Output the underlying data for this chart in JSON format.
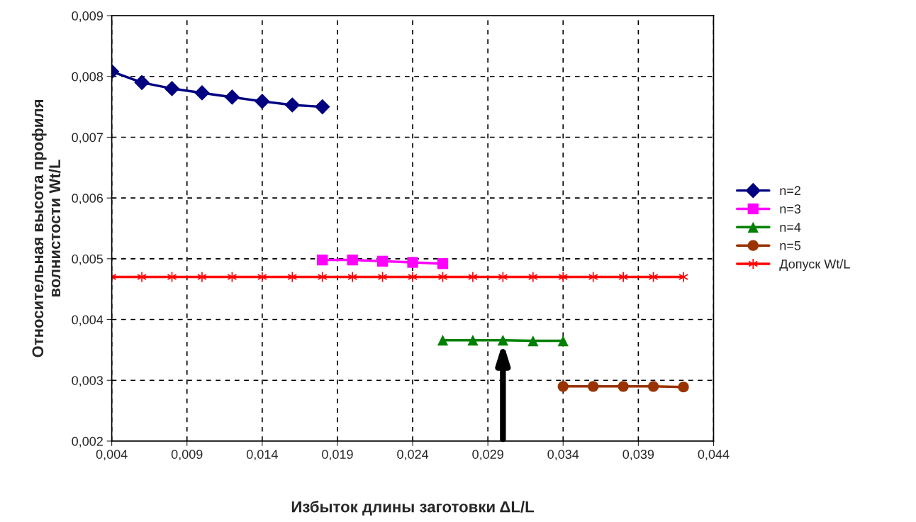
{
  "chart_data": {
    "type": "line",
    "xlabel": "Избыток длины заготовки ΔL/L",
    "ylabel": "Относительная высота профиля\nволнистости Wt/L",
    "xlim": [
      0.004,
      0.044
    ],
    "ylim": [
      0.002,
      0.009
    ],
    "xticks": [
      {
        "value": 0.004,
        "label": "0,004"
      },
      {
        "value": 0.009,
        "label": "0,009"
      },
      {
        "value": 0.014,
        "label": "0,014"
      },
      {
        "value": 0.019,
        "label": "0,019"
      },
      {
        "value": 0.024,
        "label": "0,024"
      },
      {
        "value": 0.029,
        "label": "0,029"
      },
      {
        "value": 0.034,
        "label": "0,034"
      },
      {
        "value": 0.039,
        "label": "0,039"
      },
      {
        "value": 0.044,
        "label": "0,044"
      }
    ],
    "yticks": [
      {
        "value": 0.002,
        "label": "0,002"
      },
      {
        "value": 0.003,
        "label": "0,003"
      },
      {
        "value": 0.004,
        "label": "0,004"
      },
      {
        "value": 0.005,
        "label": "0,005"
      },
      {
        "value": 0.006,
        "label": "0,006"
      },
      {
        "value": 0.007,
        "label": "0,007"
      },
      {
        "value": 0.008,
        "label": "0,008"
      },
      {
        "value": 0.009,
        "label": "0,009"
      }
    ],
    "grid": true,
    "legend": "right",
    "line_style": "solid",
    "series": [
      {
        "name": "n=2",
        "color": "#000080",
        "marker": "diamond",
        "x": [
          0.004,
          0.006,
          0.008,
          0.01,
          0.012,
          0.014,
          0.016,
          0.018
        ],
        "values": [
          0.00808,
          0.0079,
          0.0078,
          0.00773,
          0.00766,
          0.00759,
          0.00753,
          0.0075
        ]
      },
      {
        "name": "n=3",
        "color": "#ff00ff",
        "marker": "square",
        "x": [
          0.018,
          0.02,
          0.022,
          0.024,
          0.026
        ],
        "values": [
          0.00498,
          0.00498,
          0.00496,
          0.00494,
          0.00492
        ]
      },
      {
        "name": "n=4",
        "color": "#008000",
        "marker": "triangle",
        "x": [
          0.026,
          0.028,
          0.03,
          0.032,
          0.034
        ],
        "values": [
          0.00366,
          0.00366,
          0.00366,
          0.00365,
          0.00365
        ]
      },
      {
        "name": "n=5",
        "color": "#993300",
        "marker": "circle",
        "x": [
          0.034,
          0.036,
          0.038,
          0.04,
          0.042
        ],
        "values": [
          0.0029,
          0.0029,
          0.0029,
          0.0029,
          0.00289
        ]
      },
      {
        "name": "Допуск Wt/L",
        "color": "#ff0000",
        "marker": "cross",
        "x": [
          0.004,
          0.006,
          0.008,
          0.01,
          0.012,
          0.014,
          0.016,
          0.018,
          0.02,
          0.022,
          0.024,
          0.026,
          0.028,
          0.03,
          0.032,
          0.034,
          0.036,
          0.038,
          0.04,
          0.042
        ],
        "values": [
          0.0047,
          0.0047,
          0.0047,
          0.0047,
          0.0047,
          0.0047,
          0.0047,
          0.0047,
          0.0047,
          0.0047,
          0.0047,
          0.0047,
          0.0047,
          0.0047,
          0.0047,
          0.0047,
          0.0047,
          0.0047,
          0.0047,
          0.0047
        ]
      }
    ]
  }
}
